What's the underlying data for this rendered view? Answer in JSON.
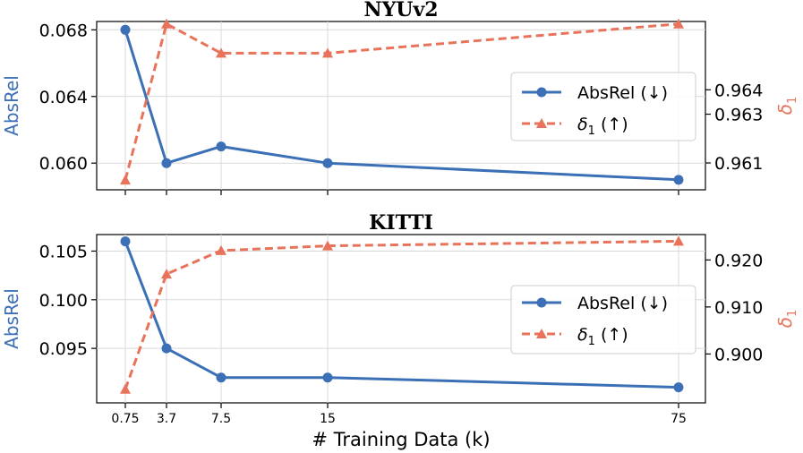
{
  "colors": {
    "absrel": "#3b6fb6",
    "delta": "#e8735a",
    "grid": "#d9d9d9",
    "axis": "#000000"
  },
  "chart_data": [
    {
      "type": "line",
      "title": "NYUv2",
      "x": [
        0.75,
        3.7,
        7.5,
        15,
        75
      ],
      "xticks": [
        "0.75",
        "3.7",
        "7.5",
        "15",
        "75"
      ],
      "xlabel": "# Training Data (k)",
      "ylabel": "AbsRel",
      "y2label": "δ",
      "y2label_sub": "1",
      "ylim": [
        0.0584,
        0.0685
      ],
      "y2lim": [
        0.9599,
        0.9668
      ],
      "yticks": [
        0.06,
        0.064,
        0.068
      ],
      "ytick_labels": [
        "0.060",
        "0.064",
        "0.068"
      ],
      "y2ticks": [
        0.961,
        0.963,
        0.964
      ],
      "y2tick_labels": [
        "0.961",
        "0.963",
        "0.964"
      ],
      "series": [
        {
          "name": "AbsRel",
          "legend_name": "AbsRel",
          "legend_arrow": "(↓)",
          "axis": "left",
          "values": [
            0.068,
            0.06,
            0.061,
            0.06,
            0.059
          ]
        },
        {
          "name": "δ1",
          "legend_name": "δ",
          "legend_sub": "1",
          "legend_arrow": "(↑)",
          "axis": "right",
          "values": [
            0.9603,
            0.9667,
            0.9655,
            0.9655,
            0.9667
          ]
        }
      ],
      "legend": "center-right"
    },
    {
      "type": "line",
      "title": "KITTI",
      "x": [
        0.75,
        3.7,
        7.5,
        15,
        75
      ],
      "xticks": [
        "0.75",
        "3.7",
        "7.5",
        "15",
        "75"
      ],
      "xlabel": "# Training Data (k)",
      "ylabel": "AbsRel",
      "y2label": "δ",
      "y2label_sub": "1",
      "ylim": [
        0.0894,
        0.1067
      ],
      "y2lim": [
        0.8896,
        0.9254
      ],
      "yticks": [
        0.095,
        0.1,
        0.105
      ],
      "ytick_labels": [
        "0.095",
        "0.100",
        "0.105"
      ],
      "y2ticks": [
        0.9,
        0.91,
        0.92
      ],
      "y2tick_labels": [
        "0.900",
        "0.910",
        "0.920"
      ],
      "series": [
        {
          "name": "AbsRel",
          "legend_name": "AbsRel",
          "legend_arrow": "(↓)",
          "axis": "left",
          "values": [
            0.106,
            0.095,
            0.092,
            0.092,
            0.091
          ]
        },
        {
          "name": "δ1",
          "legend_name": "δ",
          "legend_sub": "1",
          "legend_arrow": "(↑)",
          "axis": "right",
          "values": [
            0.8925,
            0.917,
            0.922,
            0.923,
            0.924
          ]
        }
      ],
      "legend": "center-right"
    }
  ]
}
